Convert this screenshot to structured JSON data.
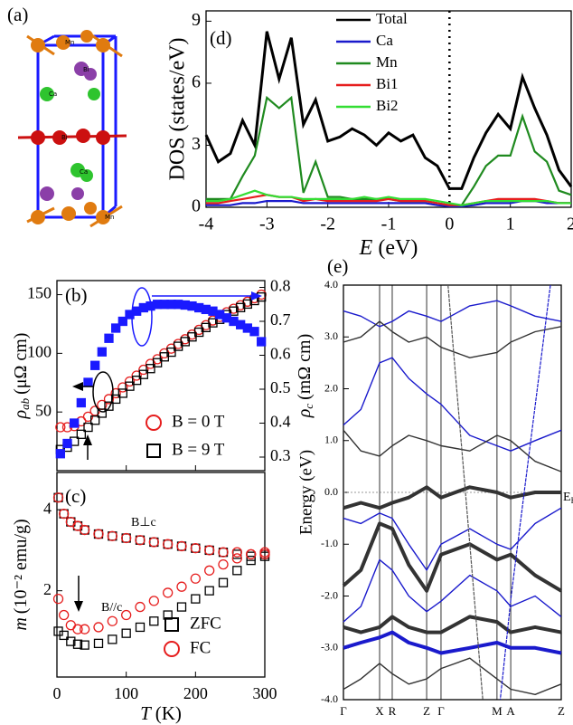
{
  "structure": {
    "panel": "(a)",
    "atoms": [
      "Mn",
      "Bi",
      "Ca"
    ]
  },
  "chart_data": [
    {
      "type": "line",
      "panel": "(d)",
      "ylabel": "DOS (states/eV)",
      "xlabel": "E",
      "xlabel_unit": "(eV)",
      "xlim": [
        -4,
        2
      ],
      "xticks": [
        -4,
        -3,
        -2,
        -1,
        0,
        1,
        2
      ],
      "ylim": [
        0,
        9.5
      ],
      "yticks": [
        0,
        3,
        6,
        9
      ],
      "vline": 0,
      "x": [
        -4,
        -3.8,
        -3.6,
        -3.4,
        -3.2,
        -3.0,
        -2.8,
        -2.6,
        -2.4,
        -2.2,
        -2.0,
        -1.8,
        -1.6,
        -1.4,
        -1.2,
        -1.0,
        -0.8,
        -0.6,
        -0.4,
        -0.2,
        0,
        0.2,
        0.4,
        0.6,
        0.8,
        1.0,
        1.2,
        1.4,
        1.6,
        1.8,
        2.0
      ],
      "series": [
        {
          "name": "Total",
          "color": "#000000",
          "values": [
            3.5,
            2.2,
            2.6,
            4.2,
            3.0,
            8.5,
            6.2,
            8.2,
            4.0,
            5.2,
            3.2,
            3.4,
            3.8,
            3.5,
            3.0,
            3.6,
            3.2,
            3.5,
            2.4,
            2.0,
            0.9,
            0.9,
            2.4,
            3.6,
            4.5,
            3.8,
            6.3,
            4.8,
            3.5,
            1.8,
            1.0
          ]
        },
        {
          "name": "Ca",
          "color": "#1a1acc",
          "values": [
            0.1,
            0.1,
            0.1,
            0.2,
            0.2,
            0.3,
            0.3,
            0.3,
            0.2,
            0.2,
            0.2,
            0.2,
            0.2,
            0.2,
            0.2,
            0.2,
            0.2,
            0.2,
            0.2,
            0.1,
            0.05,
            0.05,
            0.1,
            0.2,
            0.2,
            0.2,
            0.3,
            0.3,
            0.2,
            0.2,
            0.2
          ]
        },
        {
          "name": "Mn",
          "color": "#1f8a1f",
          "values": [
            0.4,
            0.4,
            0.4,
            1.5,
            2.5,
            5.3,
            4.8,
            5.3,
            0.7,
            2.2,
            0.5,
            0.5,
            0.4,
            0.4,
            0.4,
            0.4,
            0.3,
            0.3,
            0.3,
            0.2,
            0.1,
            0.1,
            1.0,
            2.0,
            2.5,
            2.5,
            4.4,
            2.7,
            2.2,
            0.8,
            0.6
          ]
        },
        {
          "name": "Bi1",
          "color": "#e61e1e",
          "values": [
            0.2,
            0.2,
            0.3,
            0.4,
            0.5,
            0.6,
            0.5,
            0.5,
            0.3,
            0.4,
            0.3,
            0.3,
            0.3,
            0.3,
            0.3,
            0.4,
            0.3,
            0.3,
            0.3,
            0.2,
            0.1,
            0.1,
            0.2,
            0.3,
            0.4,
            0.4,
            0.4,
            0.4,
            0.3,
            0.2,
            0.2
          ]
        },
        {
          "name": "Bi2",
          "color": "#33dd33",
          "values": [
            0.3,
            0.3,
            0.4,
            0.6,
            0.8,
            0.6,
            0.5,
            0.5,
            0.4,
            0.4,
            0.4,
            0.4,
            0.4,
            0.5,
            0.4,
            0.5,
            0.4,
            0.4,
            0.4,
            0.3,
            0.2,
            0.1,
            0.2,
            0.3,
            0.3,
            0.3,
            0.3,
            0.3,
            0.3,
            0.2,
            0.2
          ]
        }
      ]
    },
    {
      "type": "scatter",
      "panel": "(b)",
      "ylabel": {
        "symbol": "ρ",
        "sub": "ab",
        "unit": "(μΩ cm)"
      },
      "y2label": {
        "symbol": "ρ",
        "sub": "c",
        "unit": "(mΩ cm)"
      },
      "xlim": [
        0,
        300
      ],
      "xticks": [
        0,
        100,
        200,
        300
      ],
      "ylim": [
        0,
        162
      ],
      "yticks": [
        50,
        100,
        150
      ],
      "y2lim": [
        0.26,
        0.82
      ],
      "y2ticks": [
        0.3,
        0.4,
        0.5,
        0.6,
        0.7,
        0.8
      ],
      "y2color": "#1a1aff",
      "x": [
        5,
        15,
        25,
        35,
        45,
        55,
        65,
        75,
        85,
        95,
        105,
        115,
        125,
        135,
        145,
        155,
        165,
        175,
        185,
        195,
        205,
        215,
        225,
        235,
        245,
        255,
        265,
        275,
        285,
        295
      ],
      "series": [
        {
          "name": "B = 0 T",
          "color": "#e61e1e",
          "marker": "circle",
          "values": [
            37,
            37,
            38,
            42,
            46,
            51,
            56,
            61,
            66,
            71,
            76,
            81,
            86,
            91,
            95,
            100,
            104,
            108,
            112,
            116,
            120,
            124,
            128,
            131,
            135,
            138,
            141,
            144,
            147,
            150
          ]
        },
        {
          "name": "B = 9 T",
          "color": "#000000",
          "marker": "square",
          "values": [
            18,
            20,
            25,
            31,
            37,
            43,
            49,
            55,
            61,
            66,
            72,
            77,
            82,
            87,
            92,
            97,
            101,
            106,
            110,
            114,
            118,
            122,
            126,
            129,
            133,
            136,
            139,
            142,
            145,
            148
          ]
        },
        {
          "color": "#1a1aff",
          "marker": "square-filled",
          "axis": "y2",
          "values": [
            0.31,
            0.34,
            0.4,
            0.46,
            0.52,
            0.57,
            0.61,
            0.65,
            0.68,
            0.7,
            0.72,
            0.73,
            0.74,
            0.745,
            0.75,
            0.75,
            0.75,
            0.75,
            0.748,
            0.745,
            0.74,
            0.735,
            0.73,
            0.72,
            0.71,
            0.7,
            0.69,
            0.68,
            0.67,
            0.64
          ]
        }
      ]
    },
    {
      "type": "scatter",
      "panel": "(c)",
      "ylabel": {
        "symbol": "m",
        "unit": "(10⁻² emu/g)"
      },
      "xlabel": "T",
      "xlabel_unit": "(K)",
      "xlim": [
        0,
        300
      ],
      "xticks": [
        0,
        100,
        200,
        300
      ],
      "ylim": [
        -0.13,
        4.92
      ],
      "yticks": [
        2,
        4
      ],
      "annotations": [
        "B⊥c",
        "B//c"
      ],
      "x": [
        2,
        10,
        20,
        30,
        40,
        60,
        80,
        100,
        120,
        140,
        160,
        180,
        200,
        220,
        240,
        260,
        280,
        300
      ],
      "series": [
        {
          "name": "ZFC",
          "color": "#000000",
          "marker": "square",
          "values": [
            4.3,
            3.9,
            3.7,
            3.6,
            3.5,
            3.4,
            3.35,
            3.3,
            3.25,
            3.2,
            3.15,
            3.1,
            3.05,
            3.0,
            2.95,
            2.9,
            2.85,
            2.85
          ],
          "values2": [
            1.0,
            0.9,
            0.75,
            0.68,
            0.66,
            0.7,
            0.8,
            0.95,
            1.1,
            1.25,
            1.4,
            1.6,
            1.8,
            2.0,
            2.2,
            2.5,
            2.75,
            2.9
          ]
        },
        {
          "name": "FC",
          "color": "#e61e1e",
          "marker": "circle",
          "values": [
            4.3,
            3.9,
            3.7,
            3.6,
            3.5,
            3.4,
            3.35,
            3.3,
            3.25,
            3.2,
            3.15,
            3.1,
            3.05,
            3.0,
            2.95,
            2.95,
            2.9,
            2.9
          ],
          "values2": [
            1.8,
            1.4,
            1.15,
            1.05,
            1.05,
            1.1,
            1.25,
            1.4,
            1.6,
            1.75,
            1.95,
            2.1,
            2.3,
            2.5,
            2.65,
            2.8,
            2.9,
            2.95
          ]
        }
      ]
    },
    {
      "type": "band",
      "panel": "(e)",
      "ylabel": "Energy (eV)",
      "xlim": [
        0,
        1
      ],
      "xticks": [
        {
          "value": 0,
          "label": "Γ"
        },
        {
          "value": 0.166,
          "label": "X"
        },
        {
          "value": 0.224,
          "label": "R"
        },
        {
          "value": 0.382,
          "label": "Z"
        },
        {
          "value": 0.448,
          "label": "Γ"
        },
        {
          "value": 0.705,
          "label": "M"
        },
        {
          "value": 0.768,
          "label": "A"
        },
        {
          "value": 1,
          "label": "Z"
        }
      ],
      "ylim": [
        -4,
        4
      ],
      "yticks": [
        {
          "value": 4,
          "label": "4.0"
        },
        {
          "value": 3,
          "label": "3.0"
        },
        {
          "value": 2,
          "label": "2.0"
        },
        {
          "value": 1,
          "label": "1.0"
        },
        {
          "value": 0,
          "label": "0.0"
        },
        {
          "value": -1,
          "label": "-1.0"
        },
        {
          "value": -2,
          "label": "-2.0"
        },
        {
          "value": -3,
          "label": "-3.0"
        },
        {
          "value": -4,
          "label": "-4.0"
        }
      ],
      "fermi": {
        "value": 0,
        "label": "E",
        "sub": "F"
      },
      "k": [
        0,
        0.08,
        0.166,
        0.224,
        0.3,
        0.382,
        0.448,
        0.58,
        0.705,
        0.768,
        0.88,
        1.0
      ],
      "bands": [
        {
          "color": "#1a1acc",
          "values": [
            3.5,
            3.4,
            3.2,
            3.3,
            3.5,
            3.4,
            3.3,
            3.6,
            3.7,
            3.6,
            3.4,
            3.3
          ]
        },
        {
          "color": "#333333",
          "values": [
            2.9,
            3.0,
            3.3,
            3.1,
            2.9,
            3.0,
            2.8,
            2.6,
            2.7,
            2.9,
            3.1,
            3.2
          ]
        },
        {
          "color": "#1a1acc",
          "values": [
            1.3,
            1.6,
            2.5,
            2.6,
            2.2,
            1.9,
            1.7,
            1.1,
            0.9,
            0.8,
            1.0,
            1.2
          ]
        },
        {
          "color": "#333333",
          "values": [
            1.2,
            0.8,
            0.7,
            0.9,
            1.1,
            1.0,
            0.9,
            0.8,
            1.1,
            1.0,
            0.6,
            0.4
          ]
        },
        {
          "color": "#333333",
          "thick": true,
          "values": [
            -0.3,
            -0.2,
            -0.3,
            -0.2,
            -0.1,
            0.1,
            -0.1,
            0.1,
            0.0,
            -0.1,
            0.0,
            0.0
          ]
        },
        {
          "color": "#1a1acc",
          "values": [
            -0.5,
            -0.6,
            -0.4,
            -0.5,
            -1.0,
            -1.5,
            -1.0,
            -0.7,
            -1.0,
            -1.1,
            -0.6,
            -0.3
          ]
        },
        {
          "color": "#333333",
          "thick": true,
          "values": [
            -1.8,
            -1.5,
            -0.6,
            -0.7,
            -1.4,
            -1.9,
            -1.2,
            -1.0,
            -1.3,
            -1.2,
            -1.6,
            -1.9
          ]
        },
        {
          "color": "#1a1acc",
          "values": [
            -2.5,
            -2.2,
            -1.3,
            -1.5,
            -2.0,
            -2.3,
            -2.1,
            -1.6,
            -1.9,
            -2.2,
            -2.0,
            -2.4
          ]
        },
        {
          "color": "#333333",
          "thick": true,
          "values": [
            -2.6,
            -2.7,
            -2.6,
            -2.4,
            -2.6,
            -2.7,
            -2.7,
            -2.4,
            -2.5,
            -2.7,
            -2.6,
            -2.7
          ]
        },
        {
          "color": "#1a1acc",
          "thick": true,
          "values": [
            -3.0,
            -2.9,
            -2.8,
            -2.7,
            -2.9,
            -3.0,
            -3.1,
            -3.0,
            -2.9,
            -3.0,
            -3.0,
            -3.1
          ]
        },
        {
          "color": "#333333",
          "values": [
            -3.8,
            -3.6,
            -3.3,
            -3.5,
            -3.7,
            -3.6,
            -3.4,
            -3.2,
            -3.6,
            -3.8,
            -3.9,
            -3.7
          ]
        },
        {
          "color": "#555555",
          "marker": "circle",
          "x": [
            0.48,
            0.52,
            0.56,
            0.6,
            0.64
          ],
          "values": [
            4.0,
            2.0,
            0,
            -2,
            -4
          ]
        },
        {
          "color": "#1a1acc",
          "marker": "circle",
          "x": [
            0.95,
            0.89,
            0.83,
            0.77,
            0.72
          ],
          "values": [
            4.0,
            2.0,
            0,
            -2,
            -4
          ]
        }
      ]
    }
  ]
}
